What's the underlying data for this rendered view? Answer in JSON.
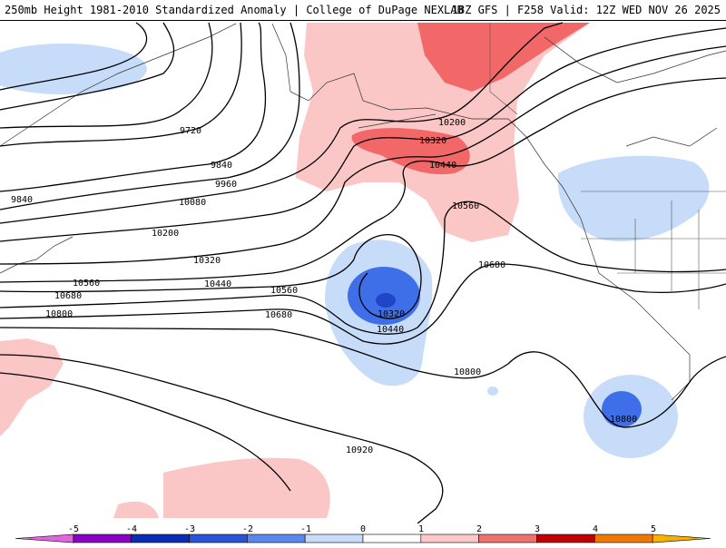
{
  "header": {
    "title_left": "250mb Height 1981-2010 Standardized Anomaly | College of DuPage NEXLAB",
    "title_right": "18Z GFS | F258 Valid: 12Z WED NOV 26 2025"
  },
  "contour_labels": [
    "9720",
    "9840",
    "9960",
    "10080",
    "10200",
    "9840",
    "10320",
    "10440",
    "10560",
    "10680",
    "10800",
    "10560",
    "10680",
    "10320",
    "10440",
    "10200",
    "10320",
    "10440",
    "10560",
    "10680",
    "10800",
    "10920",
    "10800"
  ],
  "colorbar": {
    "ticks": [
      "-5",
      "-4",
      "-3",
      "-2",
      "-1",
      "0",
      "1",
      "2",
      "3",
      "4",
      "5"
    ],
    "colors": [
      "#e066e0",
      "#8a00c8",
      "#0a2ab8",
      "#2a54d8",
      "#5b86ee",
      "#c8dcfa",
      "#ffffff",
      "#ffc8c8",
      "#f07070",
      "#c00000",
      "#f07800",
      "#f8b000"
    ]
  },
  "colors": {
    "neg1": "#c6dcf8",
    "neg2": "#3f6fe8",
    "neg3": "#1f46c8",
    "pos1": "#fbc6c6",
    "pos2": "#f26868"
  }
}
